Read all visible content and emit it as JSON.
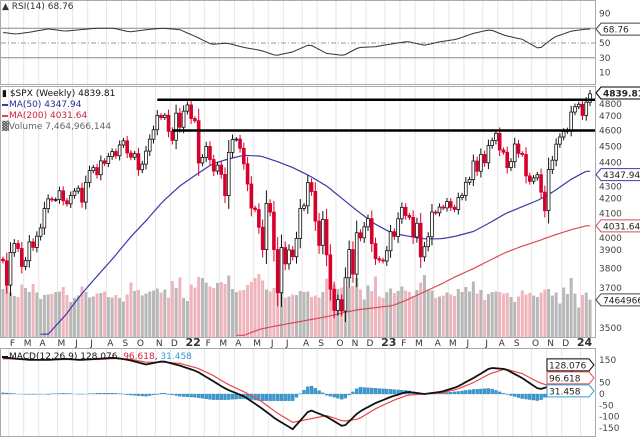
{
  "rsi_label": "RSI(14) 68.76",
  "price_legend": {
    "symbol": "$SPX (Weekly) 4839.81",
    "ma50": "MA(50) 4347.94",
    "ma200": "MA(200) 4031.64",
    "volume": "Volume 7,464,966,144"
  },
  "macd_legend": {
    "name": "MACD(12,26,9)",
    "macd": "128.076",
    "signal": "96.618",
    "hist": "31.458"
  },
  "colors": {
    "up": "#111111",
    "down": "#d6002a",
    "ma50": "#3a3aa8",
    "ma200": "#d84a5a",
    "vol_up": "#b8b8b8",
    "vol_down": "#f0b4bc",
    "macd": "#111111",
    "signal": "#e84848",
    "hist": "#3a9ad0",
    "rsi": "#333333"
  },
  "chart_data": {
    "type": "candlestick",
    "symbol": "$SPX",
    "interval": "Weekly",
    "price_scale": "log",
    "price_ticks": [
      "4800",
      "4700",
      "4600",
      "4500",
      "4400",
      "4300",
      "4200",
      "4100",
      "4000",
      "3900",
      "3800",
      "3700",
      "3500"
    ],
    "rsi_ticks": [
      "90",
      "50",
      "30",
      "10"
    ],
    "rsi_levels": [
      70,
      50,
      30
    ],
    "macd_ticks": [
      "150",
      "50",
      "0",
      "-50",
      "-100",
      "-150"
    ],
    "last_values": {
      "price": "4839.81",
      "ma50": "4347.94",
      "ma200": "4031.64",
      "volume": "7464966",
      "rsi": "68.76",
      "macd": "128.076",
      "signal": "96.618",
      "hist": "31.458"
    },
    "support_lines": [
      {
        "level": 4800,
        "from": "2021-11"
      },
      {
        "level": 4600,
        "from": "2021-12"
      }
    ],
    "months": [
      {
        "m": "2021-01",
        "label": "",
        "closes": [
          3841,
          3714
        ],
        "volume": [
          9.6,
          10.8
        ]
      },
      {
        "m": "2021-02",
        "label": "F",
        "closes": [
          3886,
          3934,
          3907,
          3811
        ],
        "volume": [
          8.9,
          8.2,
          8.0,
          10.5
        ]
      },
      {
        "m": "2021-03",
        "label": "M",
        "closes": [
          3842,
          3943,
          3913,
          3974
        ],
        "volume": [
          9.8,
          9.0,
          10.6,
          8.9
        ]
      },
      {
        "m": "2021-04",
        "label": "A",
        "closes": [
          4020,
          4129,
          4185,
          4180,
          4181
        ],
        "volume": [
          7.6,
          8.4,
          8.5,
          8.6,
          9.0
        ]
      },
      {
        "m": "2021-05",
        "label": "M",
        "closes": [
          4232,
          4174,
          4156,
          4204
        ],
        "volume": [
          9.1,
          10.0,
          8.4,
          7.0
        ]
      },
      {
        "m": "2021-06",
        "label": "J",
        "closes": [
          4230,
          4247,
          4166,
          4281
        ],
        "volume": [
          7.8,
          8.3,
          10.1,
          9.0
        ]
      },
      {
        "m": "2021-07",
        "label": "J",
        "closes": [
          4352,
          4370,
          4327,
          4411,
          4395
        ],
        "volume": [
          7.9,
          8.1,
          8.7,
          8.8,
          9.1
        ]
      },
      {
        "m": "2021-08",
        "label": "A",
        "closes": [
          4437,
          4468,
          4442,
          4509
        ],
        "volume": [
          8.0,
          7.9,
          8.4,
          7.8
        ]
      },
      {
        "m": "2021-09",
        "label": "S",
        "closes": [
          4535,
          4459,
          4433,
          4455
        ],
        "volume": [
          7.1,
          8.5,
          10.9,
          9.2
        ]
      },
      {
        "m": "2021-10",
        "label": "O",
        "closes": [
          4357,
          4391,
          4471,
          4545,
          4605
        ],
        "volume": [
          9.4,
          8.3,
          8.7,
          9.1,
          9.3
        ]
      },
      {
        "m": "2021-11",
        "label": "N",
        "closes": [
          4697,
          4683,
          4698,
          4595
        ],
        "volume": [
          9.7,
          8.9,
          9.5,
          7.9
        ]
      },
      {
        "m": "2021-12",
        "label": "D",
        "closes": [
          4538,
          4712,
          4621,
          4725,
          4766
        ],
        "volume": [
          11.2,
          9.8,
          11.9,
          7.8,
          7.2
        ]
      },
      {
        "m": "2022-01",
        "label": "22",
        "closes": [
          4677,
          4663,
          4398,
          4432
        ],
        "volume": [
          10.5,
          9.9,
          12.0,
          11.8
        ]
      },
      {
        "m": "2022-02",
        "label": "F",
        "closes": [
          4500,
          4419,
          4349,
          4385
        ],
        "volume": [
          10.9,
          10.1,
          9.8,
          10.8
        ]
      },
      {
        "m": "2022-03",
        "label": "M",
        "closes": [
          4329,
          4204,
          4463,
          4543
        ],
        "volume": [
          11.0,
          10.6,
          12.3,
          9.6
        ]
      },
      {
        "m": "2022-04",
        "label": "A",
        "closes": [
          4546,
          4488,
          4393,
          4272,
          4132
        ],
        "volume": [
          9.0,
          9.3,
          9.4,
          10.4,
          11.0
        ]
      },
      {
        "m": "2022-05",
        "label": "M",
        "closes": [
          4123,
          4024,
          3901,
          4158
        ],
        "volume": [
          11.8,
          12.6,
          11.3,
          9.5
        ]
      },
      {
        "m": "2022-06",
        "label": "J",
        "closes": [
          4109,
          3901,
          3675,
          3912
        ],
        "volume": [
          9.1,
          9.8,
          12.9,
          10.2
        ]
      },
      {
        "m": "2022-07",
        "label": "J",
        "closes": [
          3825,
          3899,
          3863,
          3962,
          4130
        ],
        "volume": [
          7.9,
          8.1,
          8.5,
          8.4,
          9.2
        ]
      },
      {
        "m": "2022-08",
        "label": "A",
        "closes": [
          4145,
          4280,
          4228,
          4058
        ],
        "volume": [
          9.0,
          9.1,
          8.0,
          8.3
        ]
      },
      {
        "m": "2022-09",
        "label": "S",
        "closes": [
          3924,
          4067,
          3873,
          3693,
          3586
        ],
        "volume": [
          7.9,
          9.0,
          11.7,
          9.8,
          10.5
        ]
      },
      {
        "m": "2022-10",
        "label": "O",
        "closes": [
          3640,
          3583,
          3752,
          3901
        ],
        "volume": [
          9.6,
          9.9,
          10.3,
          10.0
        ]
      },
      {
        "m": "2022-11",
        "label": "N",
        "closes": [
          3771,
          3993,
          3965,
          4026
        ],
        "volume": [
          10.2,
          11.8,
          9.5,
          7.5
        ]
      },
      {
        "m": "2022-12",
        "label": "D",
        "closes": [
          4072,
          3934,
          3852,
          3845,
          3840
        ],
        "volume": [
          10.3,
          9.2,
          12.1,
          8.1,
          7.8
        ]
      },
      {
        "m": "2023-01",
        "label": "23",
        "closes": [
          3895,
          3999,
          3973,
          4071
        ],
        "volume": [
          9.0,
          9.7,
          8.8,
          9.2
        ]
      },
      {
        "m": "2023-02",
        "label": "F",
        "closes": [
          4136,
          4090,
          4079,
          3970
        ],
        "volume": [
          10.1,
          9.3,
          9.0,
          8.2
        ]
      },
      {
        "m": "2023-03",
        "label": "M",
        "closes": [
          4046,
          3862,
          3917,
          3971,
          4109
        ],
        "volume": [
          9.4,
          10.9,
          12.4,
          9.5,
          9.3
        ]
      },
      {
        "m": "2023-04",
        "label": "A",
        "closes": [
          4105,
          4138,
          4133,
          4169
        ],
        "volume": [
          7.8,
          8.1,
          8.3,
          8.9
        ]
      },
      {
        "m": "2023-05",
        "label": "M",
        "closes": [
          4136,
          4124,
          4192,
          4205
        ],
        "volume": [
          8.5,
          8.2,
          9.6,
          9.0
        ]
      },
      {
        "m": "2023-06",
        "label": "J",
        "closes": [
          4282,
          4299,
          4410,
          4348,
          4450
        ],
        "volume": [
          10.0,
          9.1,
          11.1,
          8.7,
          9.4
        ]
      },
      {
        "m": "2023-07",
        "label": "J",
        "closes": [
          4399,
          4505,
          4536,
          4582
        ],
        "volume": [
          7.4,
          8.6,
          9.0,
          9.1
        ]
      },
      {
        "m": "2023-08",
        "label": "A",
        "closes": [
          4478,
          4464,
          4370,
          4406
        ],
        "volume": [
          9.0,
          8.7,
          8.8,
          8.0
        ]
      },
      {
        "m": "2023-09",
        "label": "S",
        "closes": [
          4515,
          4457,
          4450,
          4320,
          4288
        ],
        "volume": [
          7.0,
          8.1,
          9.3,
          8.5,
          8.8
        ]
      },
      {
        "m": "2023-10",
        "label": "O",
        "closes": [
          4308,
          4327,
          4224,
          4117
        ],
        "volume": [
          8.3,
          8.0,
          8.9,
          9.5
        ]
      },
      {
        "m": "2023-11",
        "label": "N",
        "closes": [
          4358,
          4415,
          4514,
          4559
        ],
        "volume": [
          9.6,
          8.3,
          8.9,
          6.7
        ]
      },
      {
        "m": "2023-12",
        "label": "D",
        "closes": [
          4594,
          4604,
          4719,
          4754,
          4770
        ],
        "volume": [
          9.9,
          8.6,
          11.8,
          8.7,
          5.9
        ]
      },
      {
        "m": "2024-01",
        "label": "24",
        "closes": [
          4697,
          4784,
          4839.81
        ],
        "volume": [
          8.4,
          8.9,
          7.464966144
        ]
      }
    ],
    "volume_unit": "billions",
    "ma50": [
      null,
      null,
      null,
      3470,
      3560,
      3660,
      3760,
      3860,
      3960,
      4060,
      4170,
      4260,
      4330,
      4390,
      4420,
      4445,
      4440,
      4410,
      4370,
      4320,
      4260,
      4180,
      4110,
      4040,
      3990,
      3975,
      3960,
      3960,
      3975,
      4000,
      4050,
      4100,
      4140,
      4180,
      4230,
      4300,
      4347.94
    ],
    "ma200": [
      null,
      null,
      null,
      null,
      null,
      null,
      null,
      null,
      null,
      null,
      null,
      null,
      null,
      null,
      null,
      3465,
      3495,
      3510,
      3525,
      3540,
      3555,
      3575,
      3590,
      3600,
      3610,
      3640,
      3680,
      3720,
      3760,
      3800,
      3845,
      3885,
      3920,
      3950,
      3980,
      4010,
      4031.64
    ],
    "rsi": [
      64,
      62,
      65,
      69,
      66,
      68,
      70,
      70,
      65,
      68,
      70,
      68,
      58,
      48,
      50,
      44,
      40,
      33,
      38,
      48,
      36,
      33,
      44,
      45,
      49,
      52,
      47,
      52,
      55,
      63,
      68,
      60,
      55,
      42,
      58,
      66,
      68.76
    ],
    "macd": [
      160,
      155,
      150,
      150,
      155,
      150,
      155,
      160,
      150,
      130,
      145,
      125,
      100,
      60,
      20,
      -10,
      -60,
      -110,
      -155,
      -70,
      -100,
      -145,
      -80,
      -40,
      -10,
      10,
      0,
      10,
      30,
      70,
      115,
      110,
      70,
      20,
      40,
      100,
      128.076
    ],
    "signal": [
      155,
      155,
      152,
      150,
      152,
      152,
      152,
      156,
      154,
      140,
      140,
      135,
      115,
      85,
      45,
      10,
      -30,
      -80,
      -125,
      -110,
      -95,
      -120,
      -110,
      -65,
      -30,
      -5,
      0,
      5,
      20,
      50,
      90,
      110,
      90,
      50,
      30,
      70,
      96.618
    ]
  }
}
